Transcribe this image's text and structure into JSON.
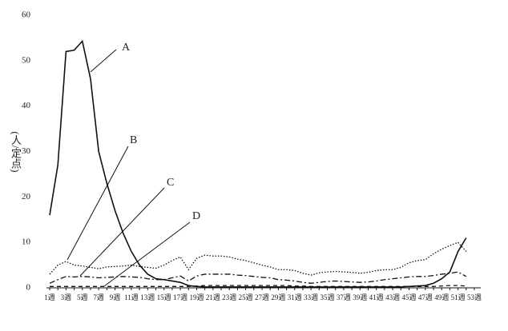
{
  "chart_data": {
    "type": "line",
    "y_label": "(人/定点)",
    "categories": [
      "1週",
      null,
      "3週",
      null,
      "5週",
      null,
      "7週",
      null,
      "9週",
      null,
      "11週",
      null,
      "13週",
      null,
      "15週",
      null,
      "17週",
      null,
      "19週",
      null,
      "21週",
      null,
      "23週",
      null,
      "25週",
      null,
      "27週",
      null,
      "29週",
      null,
      "31週",
      null,
      "33週",
      null,
      "35週",
      null,
      "37週",
      null,
      "39週",
      null,
      "41週",
      null,
      "43週",
      null,
      "45週",
      null,
      "47週",
      null,
      "49週",
      null,
      "51週",
      null,
      "53週"
    ],
    "ylim": [
      0,
      60
    ],
    "yticks": [
      0,
      10,
      20,
      30,
      40,
      50,
      60
    ],
    "annotations": [
      "A",
      "B",
      "C",
      "D"
    ],
    "series": [
      {
        "name": "A",
        "color": "#111",
        "line_style": "solid",
        "values": [
          16,
          27,
          52,
          52.3,
          54.3,
          46,
          30,
          23,
          17,
          12,
          8,
          5,
          3,
          2,
          1.8,
          1.5,
          1.2,
          0.5,
          0.3,
          0.2,
          0.2,
          0.2,
          0.2,
          0.2,
          0.2,
          0.2,
          0.2,
          0.2,
          0.2,
          0.2,
          0.2,
          0.2,
          0.2,
          0.2,
          0.2,
          0.2,
          0.2,
          0.2,
          0.2,
          0.2,
          0.2,
          0.2,
          0.2,
          0.2,
          0.3,
          0.4,
          0.5,
          1,
          2,
          3.5,
          8,
          11,
          null
        ]
      },
      {
        "name": "B",
        "color": "#111",
        "line_style": "dotted",
        "values": [
          3,
          5,
          5.8,
          5,
          4.8,
          4.5,
          4.2,
          4.6,
          4.7,
          4.8,
          5,
          4.7,
          4.5,
          4.3,
          5,
          6,
          6.8,
          4,
          6.5,
          7.2,
          7,
          7,
          6.8,
          6.3,
          6,
          5.5,
          5,
          4.6,
          4,
          4,
          3.8,
          3.2,
          2.8,
          3.3,
          3.5,
          3.6,
          3.5,
          3.4,
          3.2,
          3.4,
          3.8,
          4,
          4,
          4.5,
          5.5,
          6,
          6.2,
          7.5,
          8.5,
          9.3,
          10,
          8,
          null
        ]
      },
      {
        "name": "C",
        "color": "#111",
        "line_style": "dashdot",
        "values": [
          1,
          1.8,
          2.5,
          2.4,
          2.5,
          2.4,
          2.2,
          2.3,
          2.4,
          2.5,
          2.4,
          2.3,
          2,
          1.8,
          1.8,
          2.2,
          2.6,
          1.5,
          2.6,
          3,
          3,
          3,
          3,
          2.8,
          2.7,
          2.5,
          2.3,
          2.2,
          1.8,
          1.7,
          1.5,
          1.2,
          1,
          1.2,
          1.4,
          1.5,
          1.4,
          1.3,
          1.2,
          1.3,
          1.5,
          1.8,
          2,
          2.2,
          2.4,
          2.5,
          2.5,
          2.7,
          3,
          3.2,
          3.5,
          2.5,
          null
        ]
      },
      {
        "name": "D",
        "color": "#111",
        "line_style": "dashed",
        "values": [
          0.3,
          0.3,
          0.3,
          0.3,
          0.3,
          0.3,
          0.3,
          0.3,
          0.3,
          0.3,
          0.3,
          0.3,
          0.3,
          0.3,
          0.3,
          0.3,
          0.3,
          0.3,
          0.4,
          0.5,
          0.5,
          0.5,
          0.5,
          0.5,
          0.5,
          0.5,
          0.5,
          0.5,
          0.5,
          0.5,
          0.4,
          0.4,
          0.3,
          0.3,
          0.3,
          0.3,
          0.3,
          0.3,
          0.3,
          0.3,
          0.3,
          0.3,
          0.3,
          0.3,
          0.3,
          0.3,
          0.3,
          0.3,
          0.4,
          0.5,
          0.5,
          0.4,
          null
        ]
      }
    ]
  }
}
